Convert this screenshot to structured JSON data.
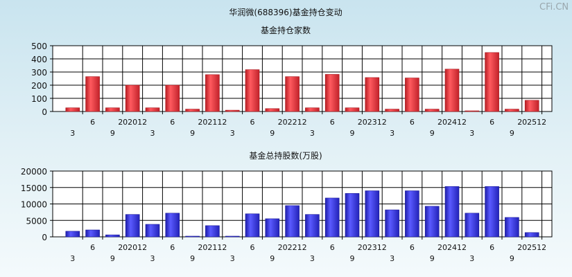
{
  "title": "华润微(688396)基金持仓变动",
  "watermark": "CFi.CN",
  "colors": {
    "plot_bg": "#ffffff",
    "grid": "#000000",
    "bar_top_fill": "#e8333a",
    "bar_top_dark": "#a8161c",
    "bar_bottom_fill": "#3a3ae0",
    "bar_bottom_dark": "#1a1a9a"
  },
  "x_labels_upper_row": [
    "6",
    "202012",
    "6",
    "202112",
    "6",
    "202212",
    "6",
    "202312",
    "6",
    "202412",
    "6",
    "202512"
  ],
  "x_labels_lower_row": [
    "3",
    "9",
    "3",
    "9",
    "3",
    "9",
    "3",
    "9",
    "3",
    "9",
    "3",
    "9"
  ],
  "chart_data": [
    {
      "type": "bar",
      "title": "基金持仓家数",
      "categories": [
        "202003",
        "202006",
        "202009",
        "202012",
        "202103",
        "202106",
        "202109",
        "202112",
        "202203",
        "202206",
        "202209",
        "202212",
        "202303",
        "202306",
        "202309",
        "202312",
        "202403",
        "202406",
        "202409",
        "202412",
        "202503",
        "202506",
        "202509",
        "202512"
      ],
      "values": [
        28,
        265,
        28,
        200,
        28,
        200,
        18,
        280,
        10,
        318,
        22,
        265,
        28,
        282,
        28,
        258,
        18,
        255,
        18,
        322,
        5,
        448,
        18,
        85
      ],
      "ylim": [
        0,
        500
      ],
      "yticks": [
        0,
        100,
        200,
        300,
        400,
        500
      ],
      "grid": true
    },
    {
      "type": "bar",
      "title": "基金总持股数(万股)",
      "categories": [
        "202003",
        "202006",
        "202009",
        "202012",
        "202103",
        "202106",
        "202109",
        "202112",
        "202203",
        "202206",
        "202209",
        "202212",
        "202303",
        "202306",
        "202309",
        "202312",
        "202403",
        "202406",
        "202409",
        "202412",
        "202503",
        "202506",
        "202509",
        "202512"
      ],
      "values": [
        1700,
        2100,
        600,
        6800,
        3800,
        7200,
        200,
        3400,
        200,
        7000,
        5500,
        9500,
        6800,
        11800,
        13200,
        14000,
        8200,
        14000,
        9300,
        15300,
        7200,
        15300,
        5900,
        1300
      ],
      "ylim": [
        0,
        20000
      ],
      "yticks": [
        0,
        5000,
        10000,
        15000,
        20000
      ],
      "grid": true
    }
  ]
}
